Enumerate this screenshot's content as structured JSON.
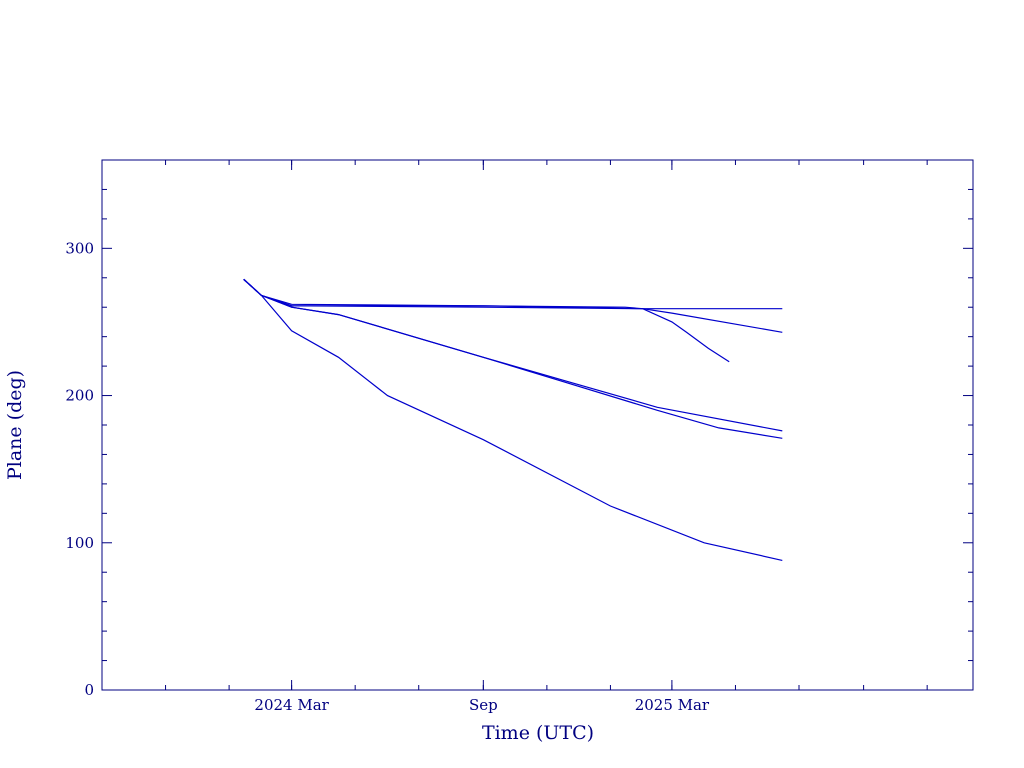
{
  "chart_data": {
    "type": "line",
    "title": "",
    "xlabel": "Time (UTC)",
    "ylabel": "Plane (deg)",
    "x_range": [
      "2023-09-01",
      "2025-12-15"
    ],
    "ylim": [
      0,
      360
    ],
    "x_ticks": [
      {
        "date": "2024-03-01",
        "label": "2024 Mar"
      },
      {
        "date": "2024-09-01",
        "label": "Sep"
      },
      {
        "date": "2025-03-01",
        "label": "2025 Mar"
      }
    ],
    "y_ticks": [
      {
        "value": 0,
        "label": "0"
      },
      {
        "value": 100,
        "label": "100"
      },
      {
        "value": 200,
        "label": "200"
      },
      {
        "value": 300,
        "label": "300"
      }
    ],
    "grid": false,
    "legend": false,
    "colors": {
      "axes": "#000080",
      "lines": "#0000cc"
    },
    "series": [
      {
        "points": [
          [
            "2024-01-15",
            279
          ],
          [
            "2024-02-01",
            268
          ],
          [
            "2024-03-01",
            261
          ],
          [
            "2024-09-01",
            261
          ],
          [
            "2025-01-15",
            260
          ],
          [
            "2025-02-01",
            259
          ],
          [
            "2025-03-01",
            259
          ],
          [
            "2025-06-15",
            259
          ]
        ]
      },
      {
        "points": [
          [
            "2024-01-15",
            279
          ],
          [
            "2024-02-01",
            268
          ],
          [
            "2024-03-01",
            262
          ],
          [
            "2024-09-01",
            261
          ],
          [
            "2025-02-01",
            259
          ],
          [
            "2025-03-01",
            250
          ],
          [
            "2025-03-15",
            243
          ],
          [
            "2025-04-05",
            232
          ],
          [
            "2025-04-25",
            223
          ]
        ]
      },
      {
        "points": [
          [
            "2024-01-15",
            279
          ],
          [
            "2024-02-01",
            268
          ],
          [
            "2024-03-01",
            261
          ],
          [
            "2024-09-01",
            260
          ],
          [
            "2025-02-01",
            259
          ],
          [
            "2025-03-01",
            256
          ],
          [
            "2025-06-15",
            243
          ]
        ]
      },
      {
        "points": [
          [
            "2024-01-15",
            279
          ],
          [
            "2024-02-01",
            268
          ],
          [
            "2024-03-01",
            260
          ],
          [
            "2024-04-15",
            255
          ],
          [
            "2024-09-01",
            226
          ],
          [
            "2025-02-15",
            192
          ],
          [
            "2025-06-15",
            176
          ]
        ]
      },
      {
        "points": [
          [
            "2024-01-15",
            279
          ],
          [
            "2024-02-01",
            268
          ],
          [
            "2024-03-01",
            260
          ],
          [
            "2024-04-15",
            255
          ],
          [
            "2024-09-01",
            226
          ],
          [
            "2025-02-15",
            190
          ],
          [
            "2025-04-15",
            178
          ],
          [
            "2025-06-15",
            171
          ]
        ]
      },
      {
        "points": [
          [
            "2024-01-15",
            279
          ],
          [
            "2024-02-01",
            268
          ],
          [
            "2024-03-01",
            244
          ],
          [
            "2024-04-15",
            226
          ],
          [
            "2024-06-01",
            200
          ],
          [
            "2024-09-01",
            170
          ],
          [
            "2025-01-01",
            125
          ],
          [
            "2025-04-01",
            100
          ],
          [
            "2025-06-15",
            88
          ]
        ]
      }
    ]
  }
}
